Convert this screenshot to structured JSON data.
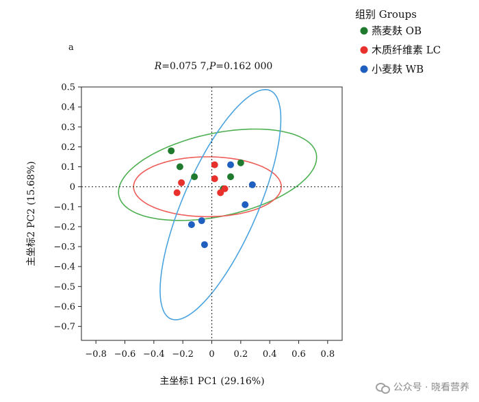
{
  "chart_data": {
    "type": "scatter",
    "panel_label": "a",
    "stat_text": {
      "r_label": "R",
      "r_value": "=0.075 7,",
      "p_label": "P",
      "p_value": "=0.162 000"
    },
    "xlabel": "主坐标1 PC1 (29.16%)",
    "ylabel": "主坐标2 PC2 (15.68%)",
    "xlim": [
      -0.9,
      0.9
    ],
    "ylim": [
      -0.77,
      0.5
    ],
    "xticks": [
      -0.8,
      -0.6,
      -0.4,
      -0.2,
      0,
      0.2,
      0.4,
      0.6,
      0.8
    ],
    "yticks": [
      0.5,
      0.4,
      0.3,
      0.2,
      0.1,
      0,
      -0.1,
      -0.2,
      -0.3,
      -0.4,
      -0.5,
      -0.6,
      -0.7
    ],
    "legend": {
      "title": "组别 Groups",
      "position": "top-right"
    },
    "series": [
      {
        "name": "燕麦麸 OB",
        "color": "#1f7a2e",
        "ellipse_color": "#4caf50",
        "points": [
          [
            -0.28,
            0.18
          ],
          [
            -0.22,
            0.1
          ],
          [
            -0.12,
            0.05
          ],
          [
            0.08,
            -0.01
          ],
          [
            0.13,
            0.05
          ],
          [
            0.2,
            0.12
          ]
        ],
        "ellipse": {
          "cx": 0.04,
          "cy": 0.06,
          "rx": 0.69,
          "ry": 0.21,
          "angle_deg": 8
        }
      },
      {
        "name": "木质纤维素 LC",
        "color": "#e8302c",
        "ellipse_color": "#ef5b57",
        "points": [
          [
            -0.24,
            -0.03
          ],
          [
            -0.21,
            0.02
          ],
          [
            0.02,
            0.11
          ],
          [
            0.02,
            0.04
          ],
          [
            0.06,
            -0.03
          ],
          [
            0.09,
            -0.01
          ]
        ],
        "ellipse": {
          "cx": -0.03,
          "cy": 0.0,
          "rx": 0.51,
          "ry": 0.15,
          "angle_deg": 0
        }
      },
      {
        "name": "小麦麸  WB",
        "color": "#1f5fbf",
        "ellipse_color": "#4aa3df",
        "points": [
          [
            -0.14,
            -0.19
          ],
          [
            -0.07,
            -0.17
          ],
          [
            -0.05,
            -0.29
          ],
          [
            0.13,
            0.11
          ],
          [
            0.23,
            -0.09
          ],
          [
            0.28,
            0.01
          ]
        ],
        "ellipse": {
          "cx": 0.06,
          "cy": -0.09,
          "rx": 0.67,
          "ry": 0.24,
          "angle_deg": 57
        }
      }
    ],
    "reference_lines": {
      "x": 0,
      "y": 0,
      "style": "dotted"
    },
    "grid": false
  },
  "watermark": {
    "text": "公众号 · 晓看营养",
    "icon": "wechat-icon"
  }
}
